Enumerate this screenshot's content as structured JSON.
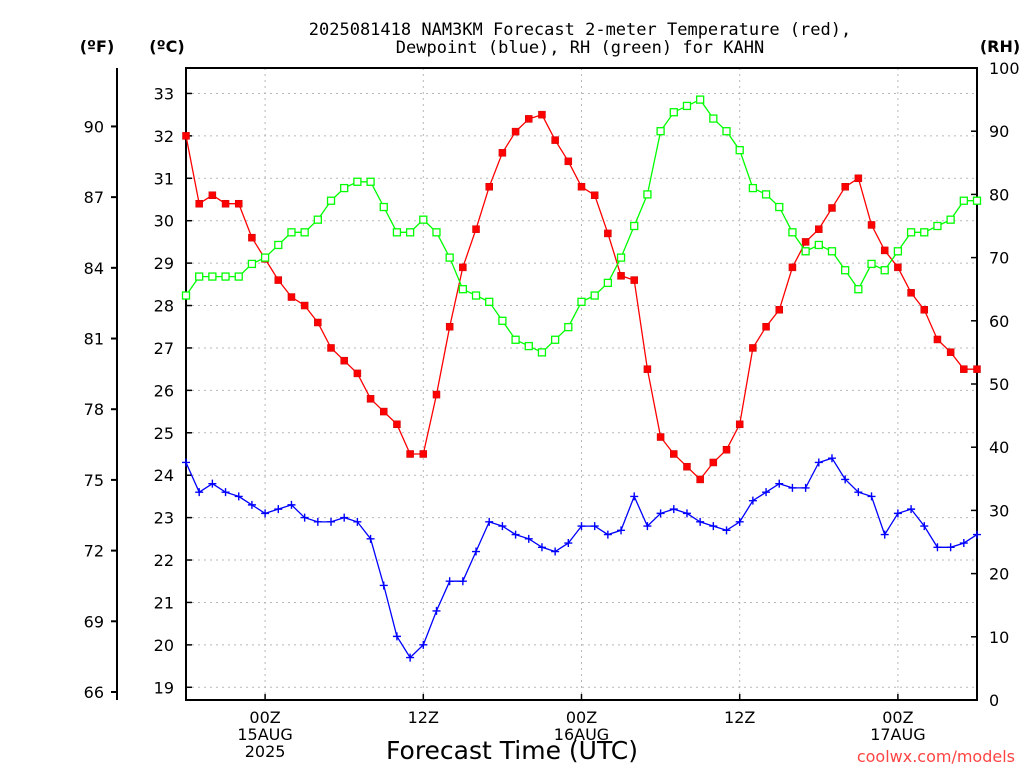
{
  "chart_data": {
    "type": "line",
    "title_lines": [
      "2025081418 NAM3KM Forecast 2-meter Temperature (red),",
      "Dewpoint (blue), RH (green) for KAHN"
    ],
    "xlabel": "Forecast Time (UTC)",
    "credit": "coolwx.com/models",
    "x_hours": [
      0,
      1,
      2,
      3,
      4,
      5,
      6,
      7,
      8,
      9,
      10,
      11,
      12,
      13,
      14,
      15,
      16,
      17,
      18,
      19,
      20,
      21,
      22,
      23,
      24,
      25,
      26,
      27,
      28,
      29,
      30,
      31,
      32,
      33,
      34,
      35,
      36,
      37,
      38,
      39,
      40,
      41,
      42,
      43,
      44,
      45,
      46,
      47,
      48,
      49,
      50,
      51,
      52,
      53,
      54,
      55,
      56,
      57,
      58,
      59,
      60
    ],
    "x_range": [
      0,
      60
    ],
    "x_ticks": [
      {
        "hour": 6,
        "lines": [
          "00Z",
          "15AUG",
          "2025"
        ]
      },
      {
        "hour": 18,
        "lines": [
          "12Z"
        ]
      },
      {
        "hour": 30,
        "lines": [
          "00Z",
          "16AUG"
        ]
      },
      {
        "hour": 42,
        "lines": [
          "12Z"
        ]
      },
      {
        "hour": 54,
        "lines": [
          "00Z",
          "17AUG"
        ]
      }
    ],
    "axes": {
      "celsius": {
        "unit_label": "(ºC)",
        "range": [
          18.7,
          33.6
        ],
        "ticks": [
          19,
          20,
          21,
          22,
          23,
          24,
          25,
          26,
          27,
          28,
          29,
          30,
          31,
          32,
          33
        ]
      },
      "fahrenheit": {
        "unit_label": "(ºF)",
        "ticks": [
          66,
          69,
          72,
          75,
          78,
          81,
          84,
          87,
          90
        ]
      },
      "rh": {
        "unit_label": "(RH)",
        "range": [
          0,
          100
        ],
        "ticks": [
          0,
          10,
          20,
          30,
          40,
          50,
          60,
          70,
          80,
          90,
          100
        ]
      }
    },
    "grid": true,
    "series": [
      {
        "key": "temperature",
        "axis": "celsius",
        "color": "#ff0000",
        "marker": "filled-square",
        "values": [
          32.0,
          30.4,
          30.6,
          30.4,
          30.4,
          29.6,
          29.1,
          28.6,
          28.2,
          28.0,
          27.6,
          27.0,
          26.7,
          26.4,
          25.8,
          25.5,
          25.2,
          24.5,
          24.5,
          25.9,
          27.5,
          28.9,
          29.8,
          30.8,
          31.6,
          32.1,
          32.4,
          32.5,
          31.9,
          31.4,
          30.8,
          30.6,
          29.7,
          28.7,
          28.6,
          26.5,
          24.9,
          24.5,
          24.2,
          23.9,
          24.3,
          24.6,
          25.2,
          27.0,
          27.5,
          27.9,
          28.9,
          29.5,
          29.8,
          30.3,
          30.8,
          31.0,
          29.9,
          29.3,
          28.9,
          28.3,
          27.9,
          27.2,
          26.9,
          26.5,
          26.5
        ]
      },
      {
        "key": "dewpoint",
        "axis": "celsius",
        "color": "#0000ff",
        "marker": "plus",
        "values": [
          24.3,
          23.6,
          23.8,
          23.6,
          23.5,
          23.3,
          23.1,
          23.2,
          23.3,
          23.0,
          22.9,
          22.9,
          23.0,
          22.9,
          22.5,
          21.4,
          20.2,
          19.7,
          20.0,
          20.8,
          21.5,
          21.5,
          22.2,
          22.9,
          22.8,
          22.6,
          22.5,
          22.3,
          22.2,
          22.4,
          22.8,
          22.8,
          22.6,
          22.7,
          23.5,
          22.8,
          23.1,
          23.2,
          23.1,
          22.9,
          22.8,
          22.7,
          22.9,
          23.4,
          23.6,
          23.8,
          23.7,
          23.7,
          24.3,
          24.4,
          23.9,
          23.6,
          23.5,
          22.6,
          23.1,
          23.2,
          22.8,
          22.3,
          22.3,
          22.4,
          22.6
        ]
      },
      {
        "key": "rh",
        "axis": "rh",
        "color": "#00ff00",
        "marker": "open-square",
        "values": [
          64,
          67,
          67,
          67,
          67,
          69,
          70,
          72,
          74,
          74,
          76,
          79,
          81,
          82,
          82,
          78,
          74,
          74,
          76,
          74,
          70,
          65,
          64,
          63,
          60,
          57,
          56,
          55,
          57,
          59,
          63,
          64,
          66,
          70,
          75,
          80,
          90,
          93,
          94,
          95,
          92,
          90,
          87,
          81,
          80,
          78,
          74,
          71,
          72,
          71,
          68,
          65,
          69,
          68,
          71,
          74,
          74,
          75,
          76,
          79,
          79
        ]
      }
    ]
  }
}
